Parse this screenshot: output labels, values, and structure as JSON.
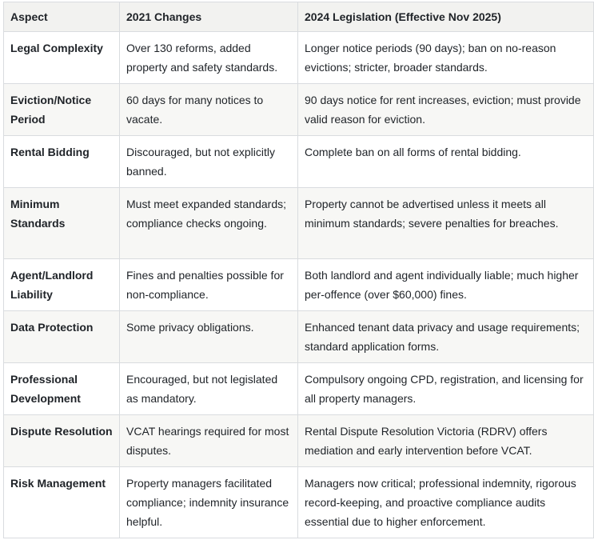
{
  "table": {
    "headers": [
      "Aspect",
      "2021 Changes",
      "2024 Legislation (Effective Nov 2025)"
    ],
    "rows": [
      {
        "aspect": "Legal Complexity",
        "changes_2021": "Over 130 reforms, added property and safety standards.",
        "legislation_2024": "Longer notice periods (90 days); ban on no-reason evictions; stricter, broader standards."
      },
      {
        "aspect": "Eviction/Notice Period",
        "changes_2021": "60 days for many notices to vacate.",
        "legislation_2024": "90 days notice for rent increases, eviction; must provide valid reason for eviction."
      },
      {
        "aspect": "Rental Bidding",
        "changes_2021": "Discouraged, but not explicitly banned.",
        "legislation_2024": "Complete ban on all forms of rental bidding."
      },
      {
        "aspect": "Minimum Standards",
        "changes_2021": "Must meet expanded standards; compliance checks ongoing.",
        "legislation_2024": "Property cannot be advertised unless it meets all minimum standards; severe penalties for breaches."
      },
      {
        "aspect": "Agent/Landlord Liability",
        "changes_2021": "Fines and penalties possible for non-compliance.",
        "legislation_2024": "Both landlord and agent individually liable; much higher per-offence (over $60,000) fines."
      },
      {
        "aspect": "Data Protection",
        "changes_2021": "Some privacy obligations.",
        "legislation_2024": "Enhanced tenant data privacy and usage requirements; standard application forms."
      },
      {
        "aspect": "Professional Development",
        "changes_2021": "Encouraged, but not legislated as mandatory.",
        "legislation_2024": "Compulsory ongoing CPD, registration, and licensing for all property managers."
      },
      {
        "aspect": "Dispute Resolution",
        "changes_2021": "VCAT hearings required for most disputes.",
        "legislation_2024": "Rental Dispute Resolution Victoria (RDRV) offers mediation and early intervention before VCAT."
      },
      {
        "aspect": "Risk Management",
        "changes_2021": "Property managers facilitated compliance; indemnity insurance helpful.",
        "legislation_2024": "Managers now critical; professional indemnity, rigorous record-keeping, and proactive compliance audits essential due to higher enforcement."
      }
    ]
  }
}
